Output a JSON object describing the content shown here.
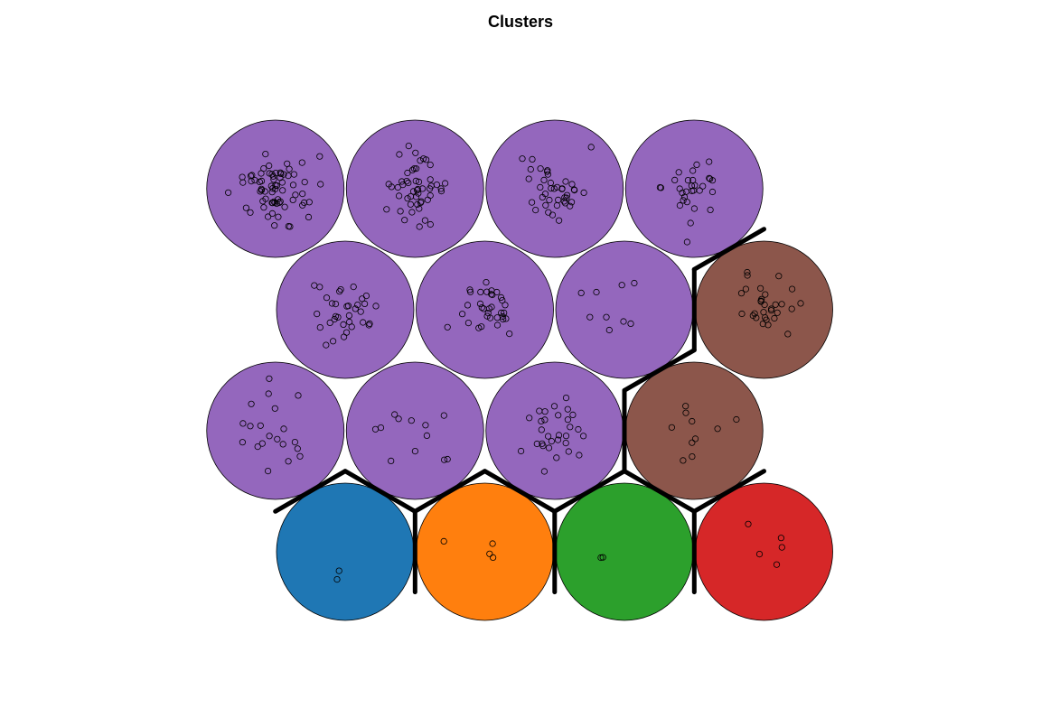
{
  "chart_data": {
    "type": "som-hexagonal-map",
    "title": "Clusters",
    "grid": {
      "rows": 4,
      "cols": 4,
      "topology": "hexagonal"
    },
    "cluster_colors": {
      "purple": "#9467bd",
      "brown": "#8c564b",
      "blue": "#1f77b4",
      "orange": "#ff7f0e",
      "green": "#2ca02c",
      "red": "#d62728"
    },
    "nodes": [
      {
        "row": 1,
        "col": 1,
        "cluster": "blue",
        "count": 2
      },
      {
        "row": 1,
        "col": 2,
        "cluster": "orange",
        "count": 4
      },
      {
        "row": 1,
        "col": 3,
        "cluster": "green",
        "count": 2
      },
      {
        "row": 1,
        "col": 4,
        "cluster": "red",
        "count": 5
      },
      {
        "row": 2,
        "col": 1,
        "cluster": "purple",
        "count": 20
      },
      {
        "row": 2,
        "col": 2,
        "cluster": "purple",
        "count": 12
      },
      {
        "row": 2,
        "col": 3,
        "cluster": "purple",
        "count": 30
      },
      {
        "row": 2,
        "col": 4,
        "cluster": "brown",
        "count": 10
      },
      {
        "row": 3,
        "col": 1,
        "cluster": "purple",
        "count": 34
      },
      {
        "row": 3,
        "col": 2,
        "cluster": "purple",
        "count": 34
      },
      {
        "row": 3,
        "col": 3,
        "cluster": "purple",
        "count": 9
      },
      {
        "row": 3,
        "col": 4,
        "cluster": "brown",
        "count": 30
      },
      {
        "row": 4,
        "col": 1,
        "cluster": "purple",
        "count": 70
      },
      {
        "row": 4,
        "col": 2,
        "cluster": "purple",
        "count": 50
      },
      {
        "row": 4,
        "col": 3,
        "cluster": "purple",
        "count": 40
      },
      {
        "row": 4,
        "col": 4,
        "cluster": "purple",
        "count": 30
      }
    ],
    "cluster_boundaries": true
  }
}
